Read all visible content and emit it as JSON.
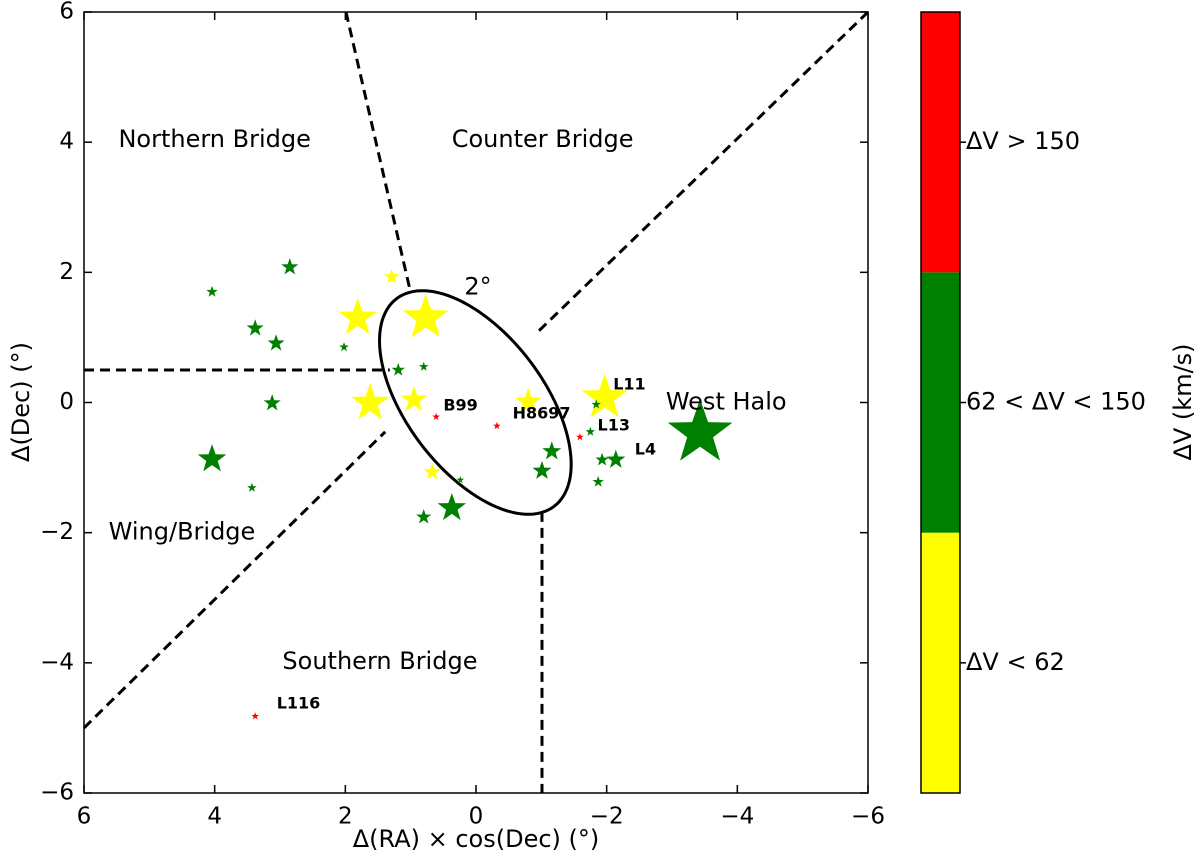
{
  "chart_data": {
    "type": "scatter",
    "x_label": "Δ(RA) × cos(Dec) (°)",
    "y_label": "Δ(Dec) (°)",
    "colorbar_label": "ΔV (km/s)",
    "xlim": [
      6,
      -6
    ],
    "ylim": [
      -6,
      6
    ],
    "xticks": [
      6,
      4,
      2,
      0,
      {
        "value": -2,
        "label": "−2"
      },
      {
        "value": -4,
        "label": "−4"
      },
      {
        "value": -6,
        "label": "−6"
      }
    ],
    "yticks": [
      {
        "value": -6,
        "label": "−6"
      },
      {
        "value": -4,
        "label": "−4"
      },
      {
        "value": -2,
        "label": "−2"
      },
      0,
      2,
      4,
      6
    ],
    "series": [
      {
        "name": "ΔV < 62",
        "color": "#ffff00",
        "x": [
          1.29,
          1.81,
          0.77,
          1.62,
          0.95,
          -0.8,
          0.67,
          -1.97
        ],
        "y": [
          1.93,
          1.3,
          1.3,
          -0.01,
          0.04,
          0.01,
          -1.07,
          0.07
        ],
        "sizes": [
          8,
          20,
          24,
          20,
          14,
          14,
          9,
          24
        ]
      },
      {
        "name": "62 < ΔV < 150",
        "color": "#008000",
        "x": [
          4.04,
          2.85,
          3.38,
          3.06,
          2.02,
          3.12,
          4.04,
          3.43,
          1.19,
          0.8,
          0.8,
          0.37,
          0.24,
          -1.01,
          -1.16,
          -1.84,
          -1.75,
          -1.93,
          -2.14,
          -1.87,
          -3.43
        ],
        "y": [
          1.7,
          2.08,
          1.14,
          0.91,
          0.85,
          -0.01,
          -0.87,
          -1.31,
          0.5,
          0.55,
          -1.76,
          -1.62,
          -1.19,
          -1.05,
          -0.75,
          -0.03,
          -0.45,
          -0.88,
          -0.88,
          -1.22,
          -0.47
        ],
        "sizes": [
          6,
          9,
          9,
          9,
          5,
          9,
          15,
          5,
          7,
          5,
          8,
          15,
          4,
          10,
          10,
          5,
          5,
          7,
          10,
          6,
          34
        ]
      },
      {
        "name": "ΔV > 150",
        "color": "#ff0000",
        "x": [
          0.61,
          -0.32,
          -1.59,
          3.38
        ],
        "y": [
          -0.22,
          -0.36,
          -0.53,
          -4.82
        ],
        "sizes": [
          4,
          4,
          4,
          4
        ]
      }
    ],
    "lines": [
      {
        "x": [
          1.99,
          1.01
        ],
        "y": [
          6,
          1.73
        ]
      },
      {
        "x": [
          6,
          1.32
        ],
        "y": [
          0.5,
          0.5
        ]
      },
      {
        "x": [
          -6,
          -0.9
        ],
        "y": [
          6,
          1.04
        ]
      },
      {
        "x": [
          6,
          1.39
        ],
        "y": [
          -5.0,
          -0.45
        ]
      },
      {
        "x": [
          -1.01,
          -1.01
        ],
        "y": [
          -1.68,
          -6
        ]
      }
    ],
    "ellipse": {
      "center": [
        0.01,
        0.0
      ],
      "semi_major": 2.0,
      "semi_minor": 1.05,
      "angle": 53
    },
    "annotations": [
      {
        "text": "Northern Bridge",
        "x": 4.0,
        "y": 4.03,
        "style": "region"
      },
      {
        "text": "Counter Bridge",
        "x": -1.02,
        "y": 4.03,
        "style": "region"
      },
      {
        "text": "West Halo",
        "x": -3.83,
        "y": 0.0,
        "style": "region"
      },
      {
        "text": "Wing/Bridge",
        "x": 4.5,
        "y": -2.0,
        "style": "region"
      },
      {
        "text": "Southern Bridge",
        "x": 1.47,
        "y": -3.99,
        "style": "region"
      },
      {
        "text": "2°",
        "x": -0.03,
        "y": 1.77,
        "style": "region"
      },
      {
        "text": "B99",
        "x": 0.5,
        "y": -0.05,
        "style": "star"
      },
      {
        "text": "H8697",
        "x": -0.56,
        "y": -0.18,
        "style": "star"
      },
      {
        "text": "L13",
        "x": -1.86,
        "y": -0.36,
        "style": "star"
      },
      {
        "text": "L11",
        "x": -2.1,
        "y": 0.27,
        "style": "star"
      },
      {
        "text": "L4",
        "x": -2.43,
        "y": -0.73,
        "style": "star"
      },
      {
        "text": "L116",
        "x": 3.05,
        "y": -4.63,
        "style": "star"
      }
    ]
  }
}
